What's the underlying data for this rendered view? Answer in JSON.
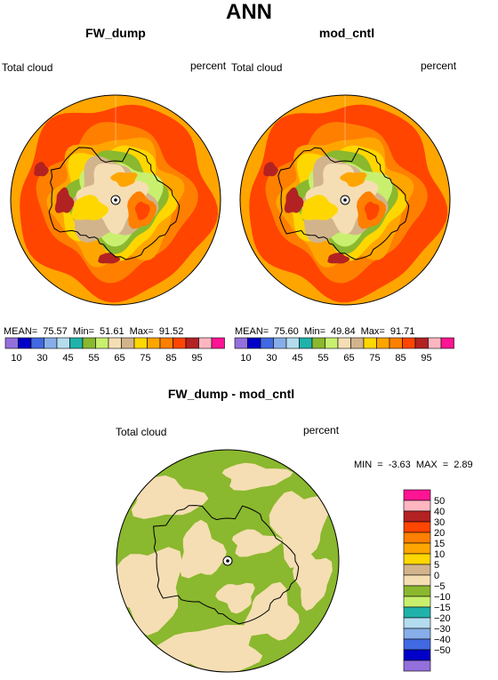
{
  "title": "ANN",
  "colors": {
    "lavender": "#9370db",
    "navy": "#0000c8",
    "blue": "#4169e1",
    "light_blue": "#87aee8",
    "pale_blue": "#b4dcef",
    "teal": "#20b2aa",
    "green": "#8ab82e",
    "light_green": "#c8f06e",
    "tan": "#d2b48c",
    "cream": "#f5deb3",
    "yellow": "#ffd700",
    "orange": "#ffa500",
    "dark_orange": "#ff7f00",
    "red_orange": "#ff4500",
    "dark_red": "#b22222",
    "pink": "#ffb6c1",
    "magenta": "#ff1493"
  },
  "panels": [
    {
      "title": "FW_dump",
      "left_label": "Total cloud",
      "right_label": "percent",
      "stats": "MEAN=  75.57  Min=  51.61  Max=  91.52"
    },
    {
      "title": "mod_cntl",
      "left_label": "Total cloud",
      "right_label": "percent",
      "stats": "MEAN=  75.60  Min=  49.84  Max=  91.71"
    }
  ],
  "abs_colorbar": {
    "colors": [
      "#9370db",
      "#0000c8",
      "#4169e1",
      "#87aee8",
      "#b4dcef",
      "#20b2aa",
      "#8ab82e",
      "#c8f06e",
      "#f5deb3",
      "#d2b48c",
      "#ffd700",
      "#ffa500",
      "#ff7f00",
      "#ff4500",
      "#b22222",
      "#ffb6c1",
      "#ff1493"
    ],
    "tick_labels": [
      "10",
      "30",
      "45",
      "55",
      "65",
      "75",
      "85",
      "95"
    ]
  },
  "diff_panel": {
    "title": "FW_dump - mod_cntl",
    "left_label": "Total cloud",
    "right_label": "percent",
    "stats": "MIN =   -3.63 MAX =    2.89"
  },
  "diff_colorbar": {
    "colors": [
      "#ff1493",
      "#ffb6c1",
      "#b22222",
      "#ff4500",
      "#ff7f00",
      "#ffa500",
      "#ffd700",
      "#d2b48c",
      "#f5deb3",
      "#8ab82e",
      "#c8f06e",
      "#20b2aa",
      "#b4dcef",
      "#87aee8",
      "#4169e1",
      "#0000c8",
      "#9370db"
    ],
    "tick_labels": [
      "50",
      "40",
      "30",
      "20",
      "15",
      "10",
      "5",
      "0",
      "−5",
      "−10",
      "−15",
      "−20",
      "−30",
      "−40",
      "−50"
    ]
  },
  "chart_data": [
    {
      "type": "heatmap",
      "title": "FW_dump",
      "variable": "Total cloud",
      "units": "percent",
      "projection": "polar stereographic (south pole)",
      "stats": {
        "mean": 75.57,
        "min": 51.61,
        "max": 91.52
      },
      "levels": [
        10,
        20,
        30,
        40,
        45,
        50,
        55,
        60,
        65,
        70,
        75,
        80,
        85,
        90,
        95
      ]
    },
    {
      "type": "heatmap",
      "title": "mod_cntl",
      "variable": "Total cloud",
      "units": "percent",
      "projection": "polar stereographic (south pole)",
      "stats": {
        "mean": 75.6,
        "min": 49.84,
        "max": 91.71
      },
      "levels": [
        10,
        20,
        30,
        40,
        45,
        50,
        55,
        60,
        65,
        70,
        75,
        80,
        85,
        90,
        95
      ]
    },
    {
      "type": "heatmap",
      "title": "FW_dump - mod_cntl",
      "variable": "Total cloud",
      "units": "percent",
      "projection": "polar stereographic (south pole)",
      "stats": {
        "min": -3.63,
        "max": 2.89
      },
      "levels": [
        -50,
        -40,
        -30,
        -20,
        -15,
        -10,
        -5,
        0,
        5,
        10,
        15,
        20,
        30,
        40,
        50
      ]
    }
  ]
}
